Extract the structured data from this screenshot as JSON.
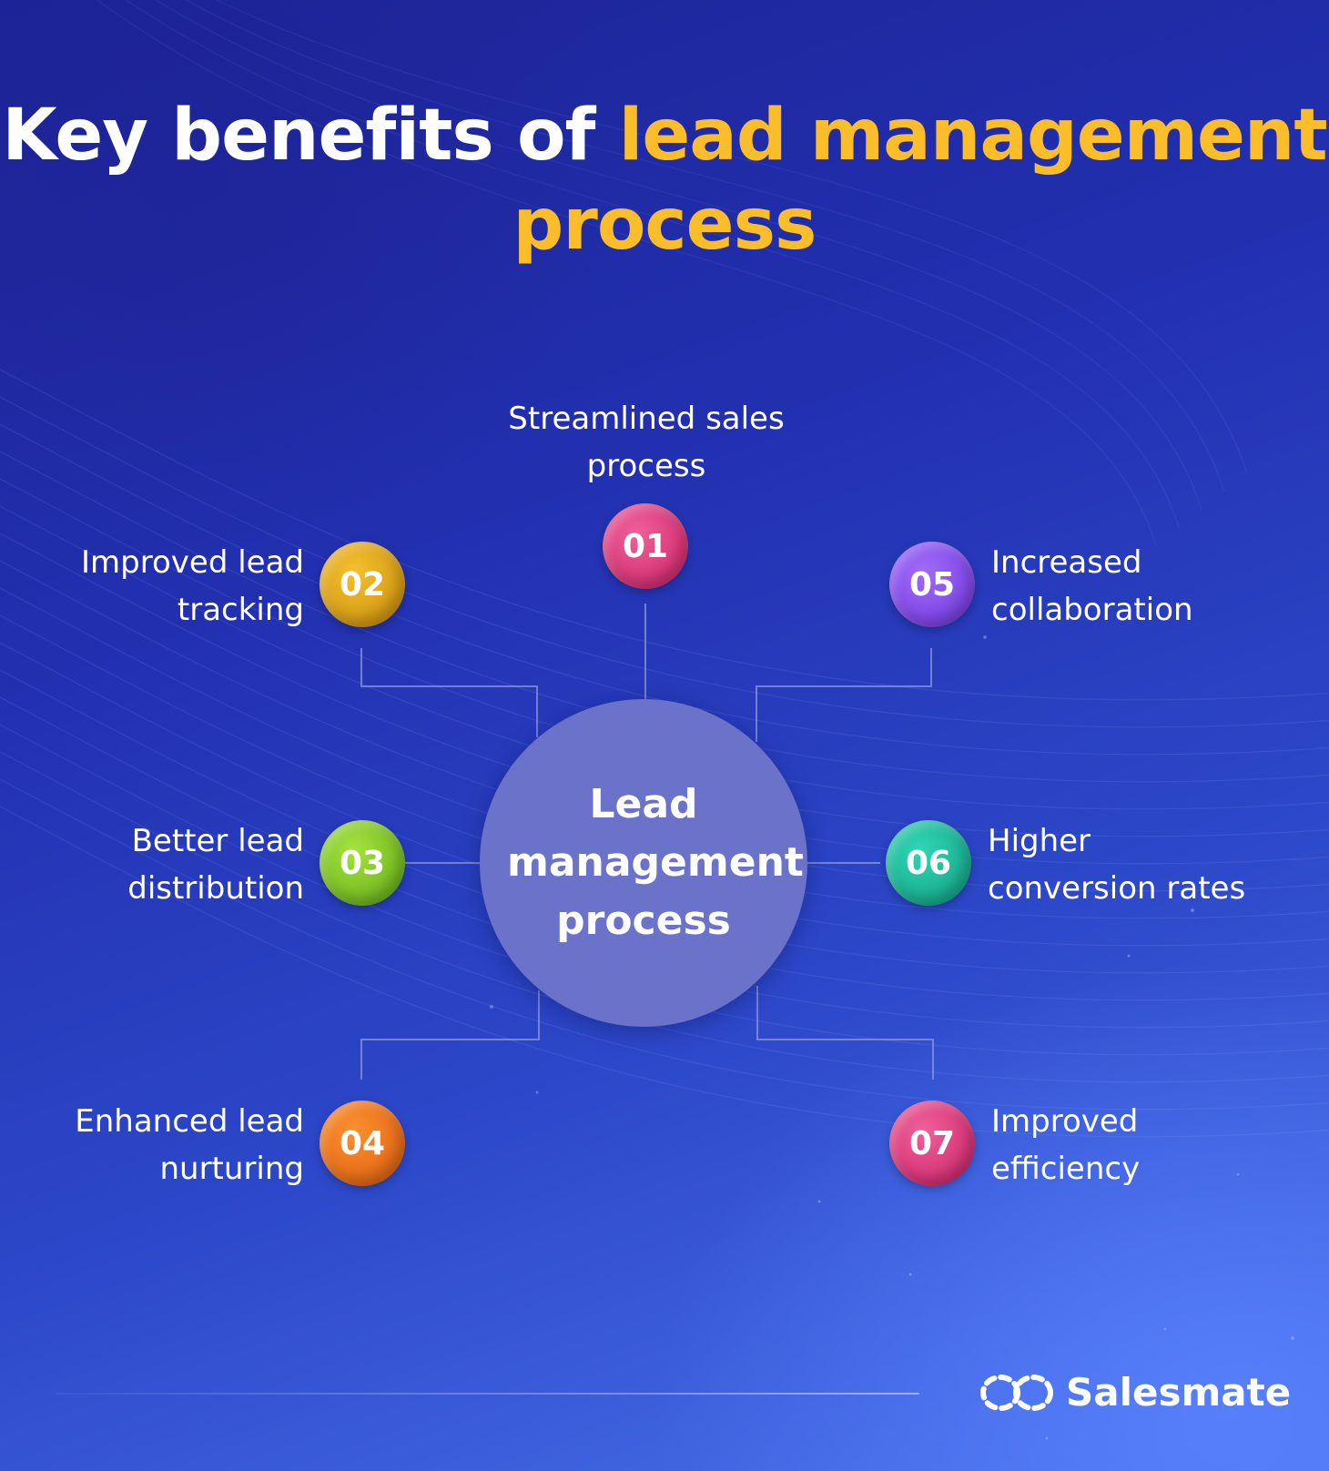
{
  "title": {
    "part1": "Key benefits of ",
    "highlight1": "lead management",
    "highlight2": "process"
  },
  "colors": {
    "background": "#2230b0",
    "title_white": "#ffffff",
    "title_highlight": "#fcbd2a",
    "hub": "#6a73c9",
    "connector": "#8e98d8"
  },
  "hub": {
    "line1": "Lead",
    "line2": "management",
    "line3": "process"
  },
  "benefits": [
    {
      "number": "01",
      "line1": "Streamlined sales",
      "line2": "process",
      "color": "#e03a80"
    },
    {
      "number": "02",
      "line1": "Improved lead",
      "line2": "tracking",
      "color": "#e0a514"
    },
    {
      "number": "03",
      "line1": "Better lead",
      "line2": "distribution",
      "color": "#7fc728"
    },
    {
      "number": "04",
      "line1": "Enhanced lead",
      "line2": "nurturing",
      "color": "#f2731d"
    },
    {
      "number": "05",
      "line1": "Increased",
      "line2": "collaboration",
      "color": "#8a4ff0"
    },
    {
      "number": "06",
      "line1": "Higher",
      "line2": "conversion rates",
      "color": "#1fbf9c"
    },
    {
      "number": "07",
      "line1": "Improved",
      "line2": "efficiency",
      "color": "#e03a80"
    }
  ],
  "brand": {
    "name": "Salesmate",
    "icon": "salesmate-logo-icon"
  }
}
